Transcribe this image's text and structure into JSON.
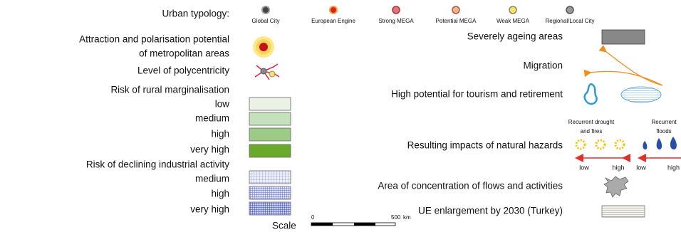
{
  "urban_typology": {
    "label": "Urban typology:",
    "types": [
      "Global City",
      "European Engine",
      "Strong MEGA",
      "Potential MEGA",
      "Weak MEGA",
      "Regional/Local City"
    ]
  },
  "attraction": [
    "Attraction and polarisation potential",
    "of metropolitan areas"
  ],
  "polycentricity": "Level of polycentricity",
  "rural_marginalisation": {
    "label": "Risk of rural marginalisation",
    "levels": [
      "low",
      "medium",
      "high",
      "very high"
    ]
  },
  "industrial_decline": {
    "label": "Risk of declining industrial activity",
    "levels": [
      "medium",
      "high",
      "very high"
    ]
  },
  "scale": {
    "label": "Scale",
    "start": "0",
    "end": "500",
    "unit": "km"
  },
  "ageing": "Severely ageing areas",
  "migration": "Migration",
  "tourism": "High potential for tourism and retirement",
  "hazards": {
    "label": "Resulting impacts of natural hazards",
    "drought": [
      "Recurrent drought",
      "and fires"
    ],
    "floods": [
      "Recurrent",
      "floods"
    ],
    "range_labels": [
      "low",
      "high",
      "low",
      "high"
    ]
  },
  "flows": "Area of concentration of flows and activities",
  "enlargement": "UE enlargement by 2030 (Turkey)"
}
